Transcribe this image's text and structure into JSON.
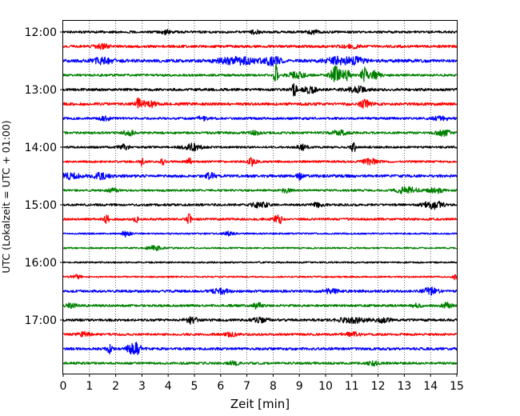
{
  "chart_data": {
    "type": "line",
    "title": "",
    "xlabel": "Zeit  [min]",
    "ylabel": "UTC (Lokalzeit = UTC + 01:00)",
    "xlim": [
      0,
      15
    ],
    "x_ticks": [
      "0",
      "1",
      "2",
      "3",
      "4",
      "5",
      "6",
      "7",
      "8",
      "9",
      "10",
      "11",
      "12",
      "13",
      "14",
      "15"
    ],
    "y_ticks": [
      "12:00",
      "13:00",
      "14:00",
      "15:00",
      "16:00",
      "17:00"
    ],
    "grid": "vertical dotted at each minute",
    "trace_interval_min": 15,
    "first_trace": "12:00",
    "colors_cycle": [
      "#000000",
      "#ff0000",
      "#0000ff",
      "#008000"
    ],
    "traces": [
      {
        "start": "12:00",
        "color": "#000000",
        "noise": 0.9,
        "events": [
          [
            3.9,
            1.5,
            0.15
          ],
          [
            7.3,
            1.4,
            0.15
          ],
          [
            9.5,
            1.5,
            0.2
          ]
        ]
      },
      {
        "start": "12:15",
        "color": "#ff0000",
        "noise": 1.0,
        "events": [
          [
            1.5,
            1.5,
            0.3
          ],
          [
            11.0,
            1.3,
            0.3
          ]
        ]
      },
      {
        "start": "12:30",
        "color": "#0000ff",
        "noise": 1.2,
        "events": [
          [
            1.5,
            2.0,
            0.4
          ],
          [
            6.7,
            2.5,
            0.8
          ],
          [
            8.0,
            3.0,
            0.3
          ],
          [
            10.5,
            2.5,
            0.5
          ],
          [
            11.2,
            2.0,
            0.3
          ]
        ]
      },
      {
        "start": "12:45",
        "color": "#008000",
        "noise": 0.9,
        "events": [
          [
            8.1,
            9.0,
            0.08
          ],
          [
            8.9,
            3.0,
            0.3
          ],
          [
            10.4,
            7.0,
            0.2
          ],
          [
            10.8,
            4.0,
            0.15
          ],
          [
            11.5,
            6.0,
            0.15
          ],
          [
            11.9,
            3.0,
            0.2
          ]
        ]
      },
      {
        "start": "13:00",
        "color": "#000000",
        "noise": 1.0,
        "events": [
          [
            8.8,
            5.0,
            0.1
          ],
          [
            9.4,
            2.5,
            0.3
          ],
          [
            11.2,
            2.0,
            0.4
          ]
        ]
      },
      {
        "start": "13:15",
        "color": "#ff0000",
        "noise": 1.1,
        "events": [
          [
            2.9,
            4.5,
            0.15
          ],
          [
            3.3,
            2.5,
            0.2
          ],
          [
            11.5,
            3.0,
            0.2
          ]
        ]
      },
      {
        "start": "13:30",
        "color": "#0000ff",
        "noise": 0.9,
        "events": [
          [
            1.6,
            1.5,
            0.2
          ],
          [
            5.3,
            1.5,
            0.2
          ],
          [
            14.4,
            1.5,
            0.3
          ]
        ]
      },
      {
        "start": "13:45",
        "color": "#008000",
        "noise": 0.9,
        "events": [
          [
            2.5,
            2.0,
            0.2
          ],
          [
            7.3,
            1.5,
            0.2
          ],
          [
            10.5,
            1.8,
            0.3
          ],
          [
            14.5,
            2.0,
            0.3
          ]
        ]
      },
      {
        "start": "14:00",
        "color": "#000000",
        "noise": 0.8,
        "events": [
          [
            2.3,
            1.8,
            0.2
          ],
          [
            4.9,
            2.5,
            0.4
          ],
          [
            9.1,
            2.0,
            0.2
          ],
          [
            11.05,
            9.0,
            0.06
          ]
        ]
      },
      {
        "start": "14:15",
        "color": "#ff0000",
        "noise": 0.8,
        "events": [
          [
            3.0,
            3.0,
            0.08
          ],
          [
            3.8,
            2.5,
            0.08
          ],
          [
            4.8,
            3.0,
            0.08
          ],
          [
            7.2,
            3.0,
            0.15
          ],
          [
            11.7,
            2.0,
            0.3
          ]
        ]
      },
      {
        "start": "14:30",
        "color": "#0000ff",
        "noise": 1.1,
        "events": [
          [
            0.3,
            2.0,
            0.4
          ],
          [
            1.4,
            2.0,
            0.3
          ],
          [
            5.6,
            2.0,
            0.2
          ],
          [
            9.0,
            2.5,
            0.1
          ]
        ]
      },
      {
        "start": "14:45",
        "color": "#008000",
        "noise": 0.8,
        "events": [
          [
            1.9,
            1.5,
            0.2
          ],
          [
            8.5,
            1.5,
            0.2
          ],
          [
            13.1,
            2.5,
            0.4
          ],
          [
            14.2,
            1.8,
            0.3
          ]
        ]
      },
      {
        "start": "15:00",
        "color": "#000000",
        "noise": 0.9,
        "events": [
          [
            7.5,
            2.0,
            0.3
          ],
          [
            9.7,
            1.5,
            0.2
          ],
          [
            14.1,
            3.0,
            0.35
          ]
        ]
      },
      {
        "start": "15:15",
        "color": "#ff0000",
        "noise": 0.9,
        "events": [
          [
            1.65,
            4.0,
            0.08
          ],
          [
            2.8,
            2.0,
            0.1
          ],
          [
            4.8,
            3.5,
            0.08
          ],
          [
            8.2,
            4.0,
            0.15
          ]
        ]
      },
      {
        "start": "15:30",
        "color": "#0000ff",
        "noise": 0.6,
        "events": [
          [
            2.4,
            3.0,
            0.15
          ],
          [
            6.3,
            1.5,
            0.2
          ]
        ]
      },
      {
        "start": "15:45",
        "color": "#008000",
        "noise": 0.6,
        "events": [
          [
            3.5,
            1.5,
            0.3
          ]
        ]
      },
      {
        "start": "16:00",
        "color": "#000000",
        "noise": 0.6,
        "events": []
      },
      {
        "start": "16:15",
        "color": "#ff0000",
        "noise": 0.6,
        "events": [
          [
            0.5,
            1.4,
            0.2
          ],
          [
            14.9,
            2.0,
            0.1
          ]
        ]
      },
      {
        "start": "16:30",
        "color": "#0000ff",
        "noise": 1.0,
        "events": [
          [
            6.0,
            1.8,
            0.3
          ],
          [
            10.2,
            1.5,
            0.3
          ],
          [
            14.0,
            3.0,
            0.25
          ]
        ]
      },
      {
        "start": "16:45",
        "color": "#008000",
        "noise": 0.9,
        "events": [
          [
            0.3,
            1.5,
            0.2
          ],
          [
            7.4,
            2.5,
            0.15
          ],
          [
            13.5,
            1.5,
            0.2
          ],
          [
            14.6,
            2.0,
            0.2
          ]
        ]
      },
      {
        "start": "17:00",
        "color": "#000000",
        "noise": 1.0,
        "events": [
          [
            4.9,
            2.5,
            0.2
          ],
          [
            7.5,
            1.5,
            0.3
          ],
          [
            11.0,
            2.0,
            0.5
          ],
          [
            12.2,
            1.5,
            0.3
          ]
        ]
      },
      {
        "start": "17:15",
        "color": "#ff0000",
        "noise": 0.9,
        "events": [
          [
            0.8,
            1.8,
            0.2
          ],
          [
            6.4,
            1.5,
            0.2
          ],
          [
            11.0,
            1.5,
            0.3
          ]
        ]
      },
      {
        "start": "17:30",
        "color": "#0000ff",
        "noise": 1.0,
        "events": [
          [
            1.75,
            4.0,
            0.1
          ],
          [
            2.7,
            5.0,
            0.25
          ]
        ]
      },
      {
        "start": "17:45",
        "color": "#008000",
        "noise": 0.9,
        "events": [
          [
            6.5,
            1.5,
            0.2
          ],
          [
            11.8,
            1.5,
            0.2
          ]
        ]
      }
    ]
  }
}
